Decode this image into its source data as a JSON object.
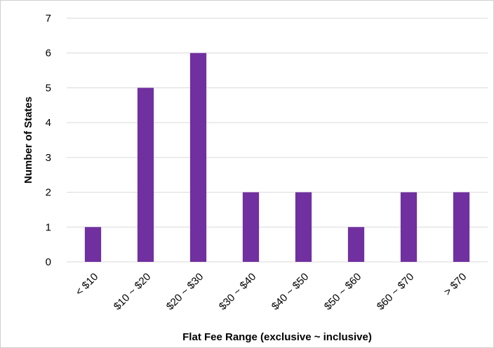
{
  "chart_data": {
    "type": "bar",
    "x_label": "Flat Fee Range (exclusive ~ inclusive)",
    "y_label": "Number of States",
    "categories": [
      "< $10",
      "$10 ~ $20",
      "$20 ~ $30",
      "$30 ~ $40",
      "$40 ~ $50",
      "$50 ~ $60",
      "$60 ~ $70",
      "> $70"
    ],
    "values": [
      1,
      5,
      6,
      2,
      2,
      1,
      2,
      2
    ],
    "color": "#7030a0",
    "ylim": [
      0,
      7
    ],
    "yticks": [
      0,
      1,
      2,
      3,
      4,
      5,
      6,
      7
    ],
    "grid": true
  }
}
